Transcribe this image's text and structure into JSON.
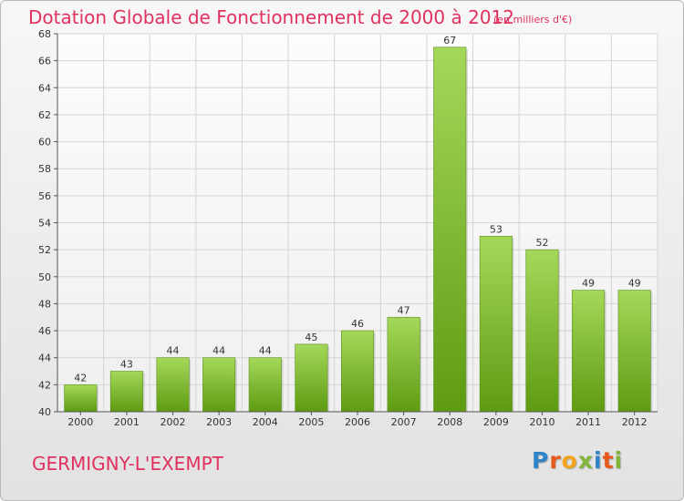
{
  "header": {
    "title": "Dotation Globale de Fonctionnement de 2000 à 2012",
    "unit": "(en milliers d'€)"
  },
  "footer": {
    "commune": "GERMIGNY-L'EXEMPT",
    "logo_text": "Proxiti"
  },
  "colors": {
    "title": "#e0315f",
    "bar_top": "#a5d85a",
    "bar_bottom": "#5e9b12",
    "grid": "#d5d5d5"
  },
  "chart_data": {
    "type": "bar",
    "categories": [
      "2000",
      "2001",
      "2002",
      "2003",
      "2004",
      "2005",
      "2006",
      "2007",
      "2008",
      "2009",
      "2010",
      "2011",
      "2012"
    ],
    "values": [
      42,
      43,
      44,
      44,
      44,
      45,
      46,
      47,
      67,
      53,
      52,
      49,
      49
    ],
    "title": "Dotation Globale de Fonctionnement de 2000 à 2012",
    "ylim": [
      40,
      68
    ],
    "yticks": [
      40,
      42,
      44,
      46,
      48,
      50,
      52,
      54,
      56,
      58,
      60,
      62,
      64,
      66,
      68
    ],
    "grid": true,
    "data_labels": true
  }
}
